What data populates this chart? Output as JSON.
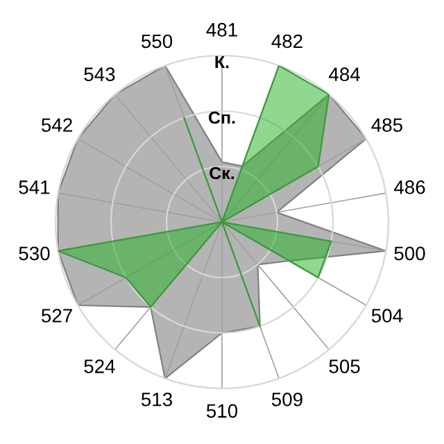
{
  "chart_data": {
    "type": "radar",
    "categories": [
      "481",
      "482",
      "484",
      "485",
      "486",
      "500",
      "504",
      "505",
      "509",
      "510",
      "513",
      "524",
      "527",
      "530",
      "541",
      "542",
      "543",
      "550"
    ],
    "series": [
      {
        "color": "#b4b4b4",
        "values": [
          1.08,
          1.07,
          3,
          3,
          1.0,
          3,
          1.4,
          1.0,
          2,
          2,
          3,
          2,
          3,
          3,
          3,
          3,
          3,
          3
        ]
      },
      {
        "color": "#22b022",
        "values": [
          0,
          3,
          3,
          2,
          0,
          2,
          2,
          0,
          2,
          0,
          0,
          2,
          2,
          3,
          0,
          0,
          0,
          2
        ]
      }
    ],
    "ylim": [
      0,
      3
    ],
    "yticks": [
      {
        "value": 1,
        "label": "Ск."
      },
      {
        "value": 2,
        "label": "Сп."
      },
      {
        "value": 3,
        "label": "К."
      }
    ],
    "grid": true
  }
}
